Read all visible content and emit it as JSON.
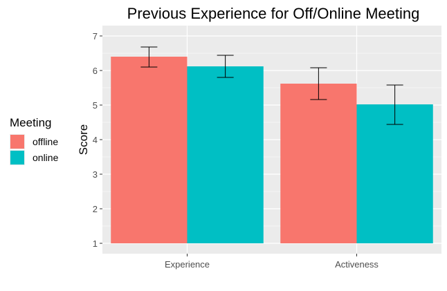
{
  "chart_data": {
    "type": "bar",
    "title": "Previous Experience for Off/Online Meeting",
    "xlabel": "",
    "ylabel": "Score",
    "categories": [
      "Experience",
      "Activeness"
    ],
    "series": [
      {
        "name": "offline",
        "color": "#F8766D",
        "values": [
          6.4,
          5.62
        ],
        "error_low": [
          6.1,
          5.16
        ],
        "error_high": [
          6.68,
          6.08
        ]
      },
      {
        "name": "online",
        "color": "#00BFC4",
        "values": [
          6.12,
          5.02
        ],
        "error_low": [
          5.8,
          4.44
        ],
        "error_high": [
          6.44,
          5.58
        ]
      }
    ],
    "ylim": [
      0.7,
      7.3
    ],
    "yticks": [
      1,
      2,
      3,
      4,
      5,
      6,
      7
    ],
    "grid": true,
    "legend": {
      "title": "Meeting",
      "position": "left"
    },
    "panel_background": "#EBEBEB"
  }
}
